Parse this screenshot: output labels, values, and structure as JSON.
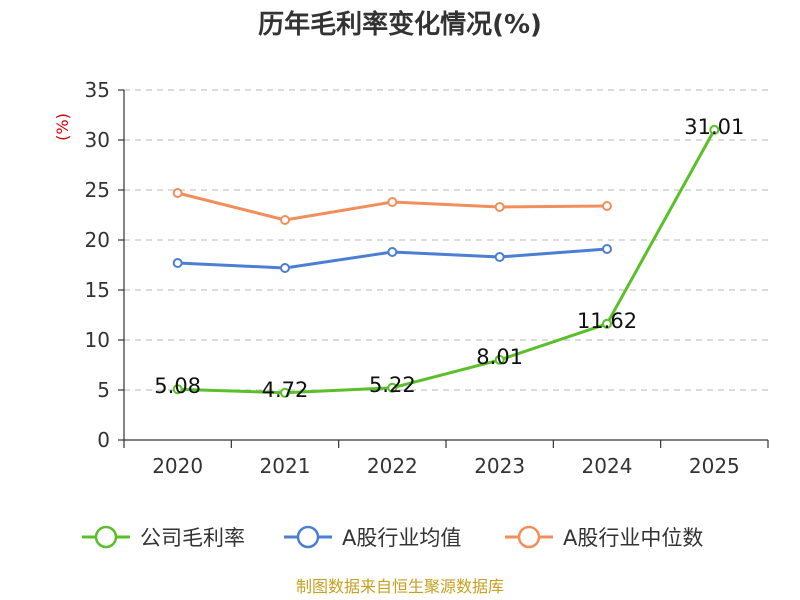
{
  "chart_data": {
    "type": "line",
    "title": "历年毛利率变化情况(%)",
    "ylabel": "(%)",
    "xlabel": "",
    "categories": [
      "2020",
      "2021",
      "2022",
      "2023",
      "2024",
      "2025"
    ],
    "ylim": [
      0,
      35
    ],
    "yticks": [
      0,
      5,
      10,
      15,
      20,
      25,
      30,
      35
    ],
    "grid": true,
    "legend_position": "bottom",
    "series": [
      {
        "name": "公司毛利率",
        "color": "#5bbf2a",
        "values": [
          5.08,
          4.72,
          5.22,
          8.01,
          11.62,
          31.01
        ],
        "labels": [
          "5.08",
          "4.72",
          "5.22",
          "8.01",
          "11.62",
          "31.01"
        ]
      },
      {
        "name": "A股行业均值",
        "color": "#4a7fd4",
        "values": [
          17.7,
          17.2,
          18.8,
          18.3,
          19.1,
          null
        ]
      },
      {
        "name": "A股行业中位数",
        "color": "#f28e5b",
        "values": [
          24.7,
          22.0,
          23.8,
          23.3,
          23.4,
          null
        ]
      }
    ]
  },
  "source": "制图数据来自恒生聚源数据库"
}
